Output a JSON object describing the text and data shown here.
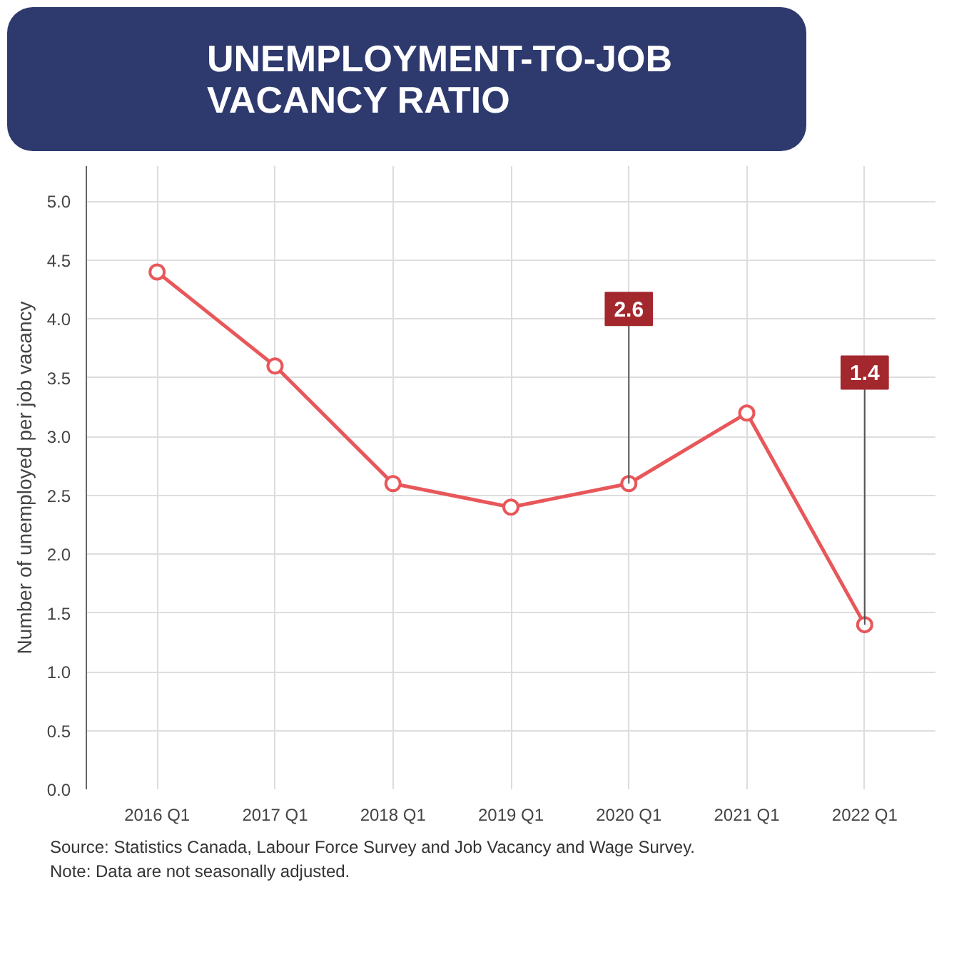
{
  "chart_data": {
    "type": "line",
    "title": "UNEMPLOYMENT-TO-JOB VACANCY RATIO",
    "ylabel": "Number of unemployed per job vacancy",
    "categories": [
      "2016 Q1",
      "2017 Q1",
      "2018 Q1",
      "2019 Q1",
      "2020 Q1",
      "2021 Q1",
      "2022 Q1"
    ],
    "series": [
      {
        "color": "#e8575a",
        "values": [
          4.4,
          3.6,
          2.6,
          2.4,
          2.6,
          3.2,
          1.4
        ]
      }
    ],
    "ylim": [
      0,
      5.3
    ],
    "yticks": [
      {
        "value": 0,
        "label": "0.0"
      },
      0.5,
      {
        "value": 1,
        "label": "1.0"
      },
      1.5,
      {
        "value": 2,
        "label": "2.0"
      },
      2.5,
      {
        "value": 3,
        "label": "3.0"
      },
      3.5,
      {
        "value": 4,
        "label": "4.0"
      },
      4.5,
      {
        "value": 5,
        "label": "5.0"
      }
    ],
    "grid": true,
    "marker": "circle",
    "line_style": "solid",
    "annotations": [
      {
        "text": "2.6",
        "x": "2020 Q1",
        "y": 2.6
      },
      {
        "text": "1.4",
        "x": "2022 Q1",
        "y": 1.4
      },
      "Source: Statistics Canada, Labour Force Survey and Job Vacancy and Wage Survey.",
      "Note: Data are not seasonally adjusted."
    ]
  }
}
